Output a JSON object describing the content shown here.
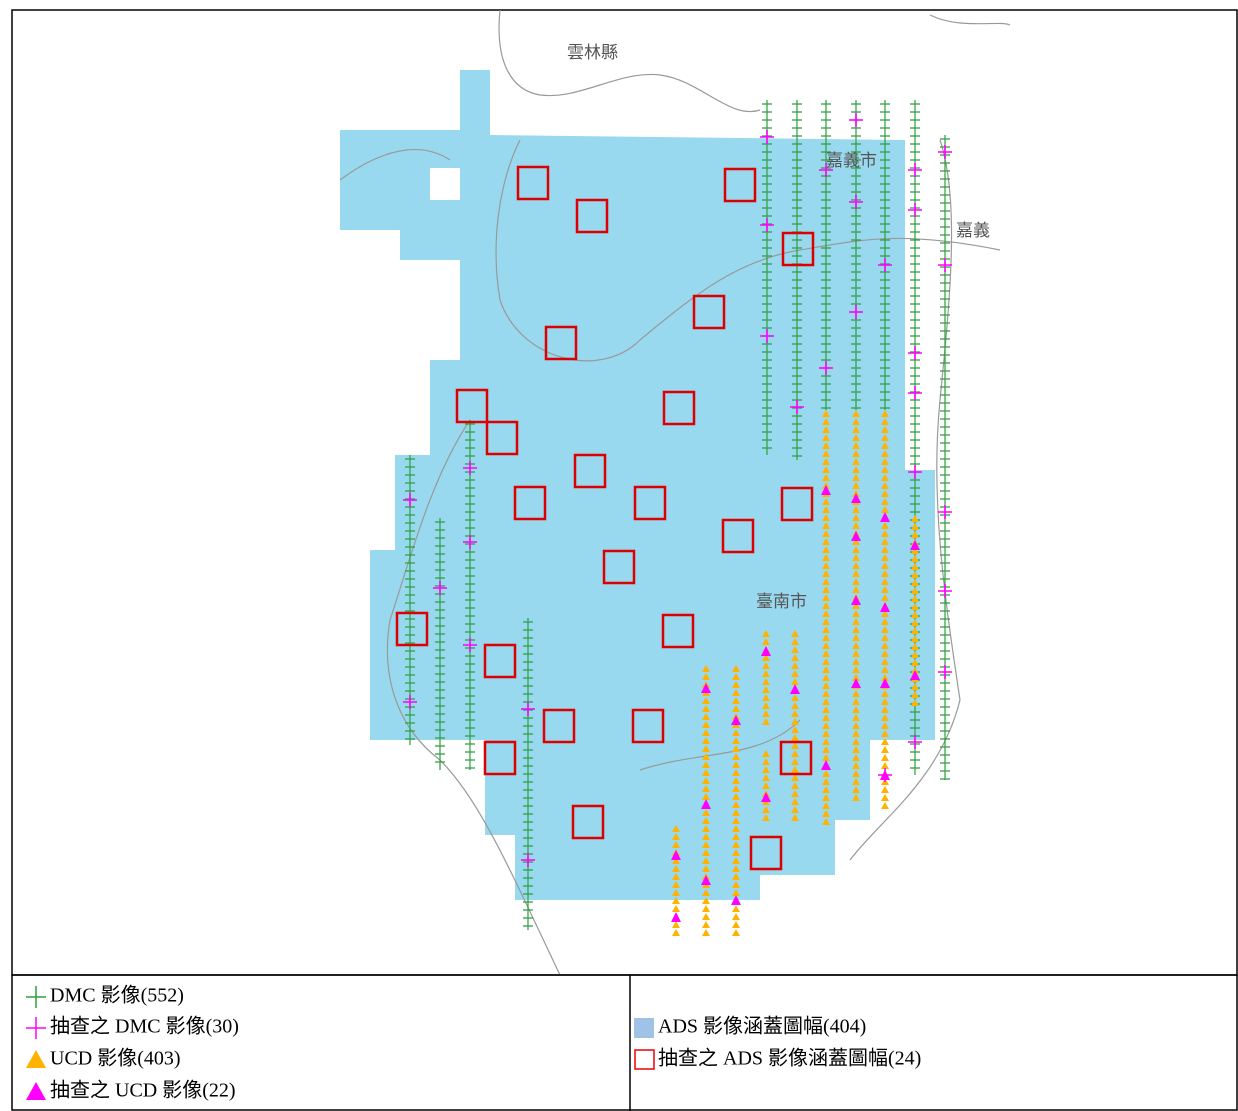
{
  "map": {
    "labels": [
      "雲林縣",
      "嘉義市",
      "嘉義",
      "臺南市"
    ]
  },
  "legend": {
    "left": [
      "DMC 影像(552)",
      "抽查之 DMC 影像(30)",
      "UCD 影像(403)",
      "抽查之 UCD 影像(22)"
    ],
    "right": [
      "ADS 影像涵蓋圖幅(404)",
      "抽查之 ADS 影像涵蓋圖幅(24)"
    ]
  }
}
